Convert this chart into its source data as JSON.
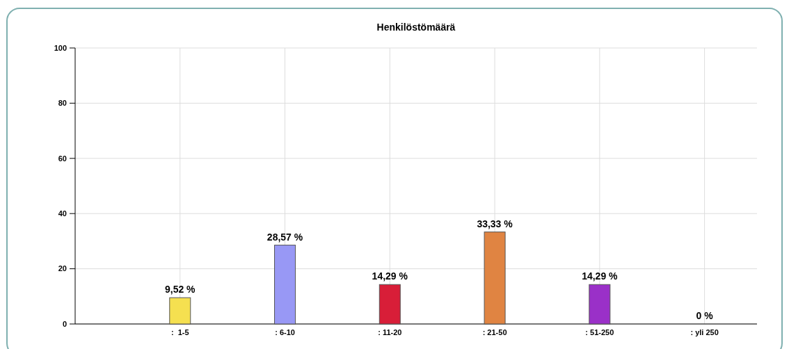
{
  "chart_data": {
    "type": "bar",
    "title": "Henkilöstömäärä",
    "categories": [
      ":  1-5",
      ": 6-10",
      ": 11-20",
      ": 21-50",
      ": 51-250",
      ": yli 250"
    ],
    "values": [
      9.52,
      28.57,
      14.29,
      33.33,
      14.29,
      0
    ],
    "colors": [
      "#f5e050",
      "#9898f5",
      "#d81e38",
      "#e08442",
      "#9a30c8",
      "#a0a0a0"
    ],
    "value_labels": [
      "9,52 %",
      "28,57 %",
      "14,29 %",
      "33,33 %",
      "14,29 %",
      "0 %"
    ],
    "ylim": [
      0,
      100
    ],
    "yticks": [
      0,
      20,
      40,
      60,
      80,
      100
    ],
    "grid": true
  }
}
